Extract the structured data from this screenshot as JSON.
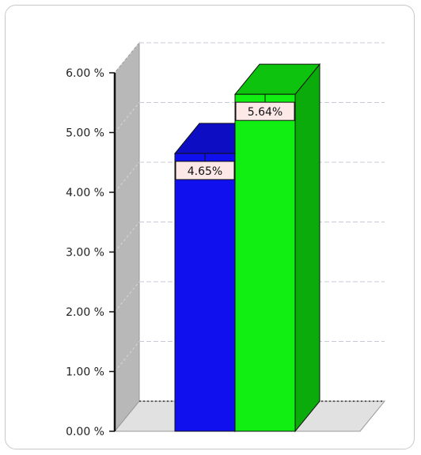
{
  "chart_data": {
    "type": "bar",
    "three_d": true,
    "categories": [
      "",
      ""
    ],
    "values": [
      4.65,
      5.64
    ],
    "data_labels": [
      "4.65%",
      "5.64%"
    ],
    "colors": [
      "#1010ee",
      "#11ee11"
    ],
    "title": "",
    "xlabel": "",
    "ylabel": "",
    "ylim": [
      0,
      6
    ],
    "yticks": [
      0,
      1,
      2,
      3,
      4,
      5,
      6
    ],
    "ytick_labels": [
      "0.00 %",
      "1.00 %",
      "2.00 %",
      "3.00 %",
      "4.00 %",
      "5.00 %",
      "6.00 %"
    ],
    "grid": true,
    "legend": "none"
  }
}
